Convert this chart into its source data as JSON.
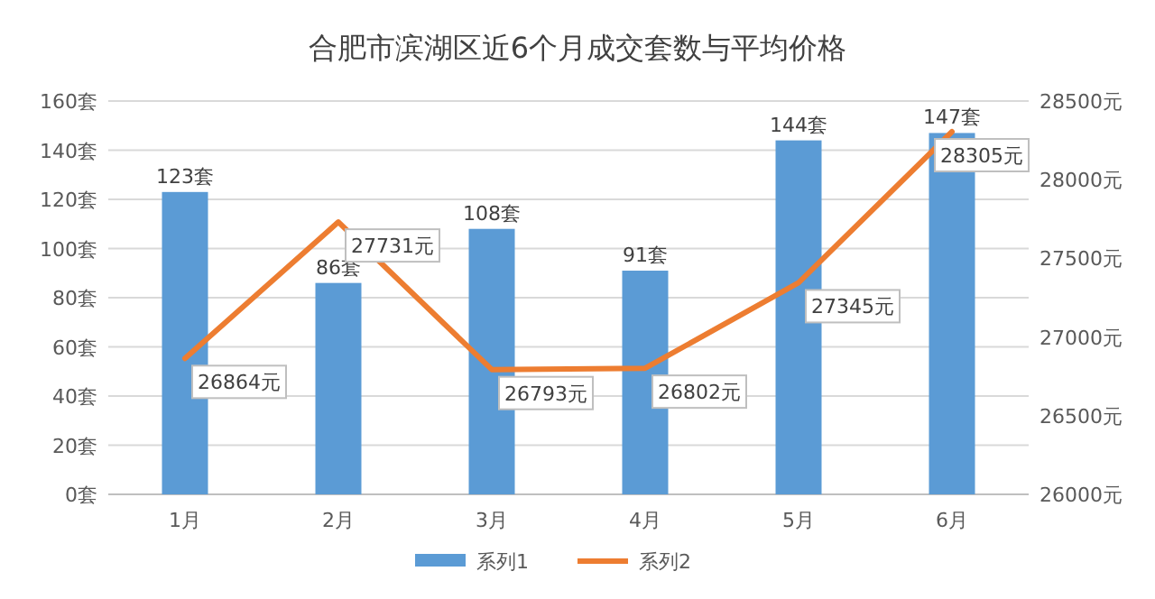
{
  "chart_data": {
    "type": "bar",
    "title": "合肥市滨湖区近6个月成交套数与平均价格",
    "categories": [
      "1月",
      "2月",
      "3月",
      "4月",
      "5月",
      "6月"
    ],
    "series": [
      {
        "name": "系列1",
        "color": "#5b9bd5",
        "values": [
          123,
          86,
          108,
          91,
          144,
          147
        ],
        "value_labels": [
          "123套",
          "86套",
          "108套",
          "91套",
          "144套",
          "147套"
        ]
      },
      {
        "name": "系列2",
        "type": "line",
        "axis": "y2",
        "color": "#ed7d31",
        "values": [
          26864,
          27731,
          26793,
          26802,
          27345,
          28305
        ],
        "value_labels": [
          "26864元",
          "27731元",
          "26793元",
          "26802元",
          "27345元",
          "28305元"
        ]
      }
    ],
    "ylim": [
      0,
      160
    ],
    "yticks": [
      {
        "value": 0,
        "label": "0套"
      },
      {
        "value": 20,
        "label": "20套"
      },
      {
        "value": 40,
        "label": "40套"
      },
      {
        "value": 60,
        "label": "60套"
      },
      {
        "value": 80,
        "label": "80套"
      },
      {
        "value": 100,
        "label": "100套"
      },
      {
        "value": 120,
        "label": "120套"
      },
      {
        "value": 140,
        "label": "140套"
      },
      {
        "value": 160,
        "label": "160套"
      }
    ],
    "y2lim": [
      26000,
      28500
    ],
    "y2ticks": [
      {
        "value": 26000,
        "label": "26000元"
      },
      {
        "value": 26500,
        "label": "26500元"
      },
      {
        "value": 27000,
        "label": "27000元"
      },
      {
        "value": 27500,
        "label": "27500元"
      },
      {
        "value": 28000,
        "label": "28000元"
      },
      {
        "value": 28500,
        "label": "28500元"
      }
    ],
    "grid": "y",
    "legend": "bottom",
    "marker": "none",
    "line_style": "solid"
  }
}
